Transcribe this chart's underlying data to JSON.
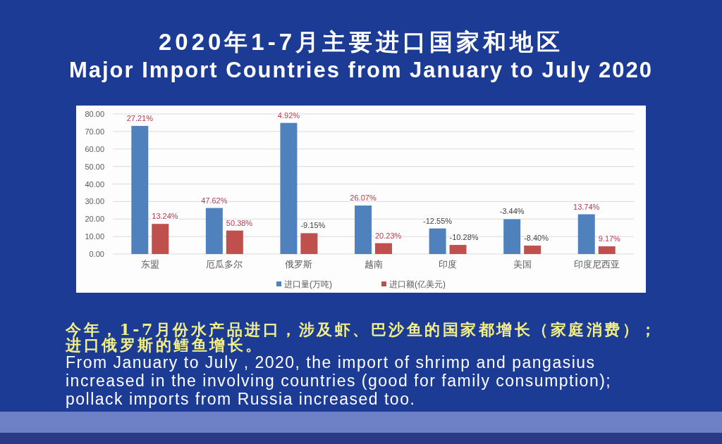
{
  "chart_data": {
    "type": "bar",
    "title": "2020年1-7月主要进口国家和地区",
    "subtitle": "Major Import Countries from January to July 2020",
    "categories": [
      "东盟",
      "厄瓜多尔",
      "俄罗斯",
      "越南",
      "印度",
      "美国",
      "印度尼西亚"
    ],
    "series": [
      {
        "name": "进口量(万吨)",
        "color": "#4f81bd",
        "values": [
          73.2,
          26.3,
          74.9,
          27.7,
          14.6,
          19.9,
          22.7
        ]
      },
      {
        "name": "进口额(亿美元)",
        "color": "#c0504d",
        "values": [
          17.2,
          13.4,
          11.9,
          6.2,
          5.2,
          4.8,
          4.4
        ]
      }
    ],
    "ylim": [
      0,
      80
    ],
    "yticks": [
      {
        "value": 0,
        "label": "0.00"
      },
      {
        "value": 10,
        "label": "10.00"
      },
      {
        "value": 20,
        "label": "20.00"
      },
      {
        "value": 30,
        "label": "30.00"
      },
      {
        "value": 40,
        "label": "40.00"
      },
      {
        "value": 50,
        "label": "50.00"
      },
      {
        "value": 60,
        "label": "60.00"
      },
      {
        "value": 70,
        "label": "70.00"
      },
      {
        "value": 80,
        "label": "80.00"
      }
    ],
    "grid": "y",
    "legend": "bottom",
    "annotations": [
      "今年，1-7月份水产品进口，涉及虾、巴沙鱼的国家都增长（家庭消费）；",
      "进口俄罗斯的鳕鱼增长。",
      "From January to July , 2020, the import of shrimp and pangasius increased in the involving countries (good for family consumption); pollack imports from Russia increased too.",
      {
        "text": "27.21%",
        "x": "东盟",
        "y": 73.2
      },
      {
        "text": "13.24%",
        "x": "东盟",
        "y": 17.2
      },
      {
        "text": "47.62%",
        "x": "厄瓜多尔",
        "y": 26.3
      },
      {
        "text": "50.38%",
        "x": "厄瓜多尔",
        "y": 13.4
      },
      {
        "text": "4.92%",
        "x": "俄罗斯",
        "y": 74.9
      },
      {
        "text": "-9.15%",
        "x": "俄罗斯",
        "y": 11.9
      },
      {
        "text": "26.07%",
        "x": "越南",
        "y": 27.7
      },
      {
        "text": "20.23%",
        "x": "越南",
        "y": 6.2
      },
      {
        "text": "-12.55%",
        "x": "印度",
        "y": 14.6
      },
      {
        "text": "-10.28%",
        "x": "印度",
        "y": 5.2
      },
      {
        "text": "-3.44%",
        "x": "美国",
        "y": 19.9
      },
      {
        "text": "-8.40%",
        "x": "美国",
        "y": 4.8
      },
      {
        "text": "13.74%",
        "x": "印度尼西亚",
        "y": 22.7
      },
      {
        "text": "9.17%",
        "x": "印度尼西亚",
        "y": 4.4
      }
    ]
  }
}
